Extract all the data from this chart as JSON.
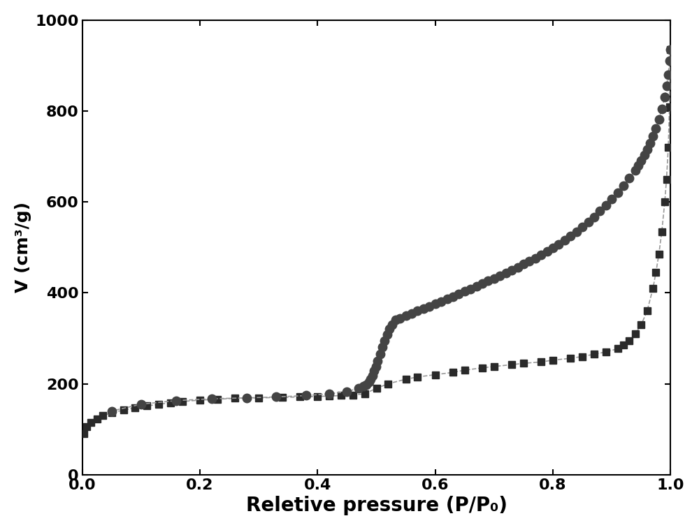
{
  "title": "",
  "xlabel": "Reletive pressure (P/P₀)",
  "ylabel": "V (cm³/g)",
  "xlim": [
    0.0,
    1.0
  ],
  "ylim": [
    0,
    1000
  ],
  "yticks": [
    0,
    200,
    400,
    600,
    800,
    1000
  ],
  "xticks": [
    0.0,
    0.2,
    0.4,
    0.6,
    0.8,
    1.0
  ],
  "background_color": "#ffffff",
  "xlabel_fontsize": 20,
  "ylabel_fontsize": 18,
  "tick_fontsize": 16,
  "adsorption_x": [
    0.003,
    0.008,
    0.015,
    0.025,
    0.035,
    0.05,
    0.07,
    0.09,
    0.11,
    0.13,
    0.15,
    0.17,
    0.2,
    0.23,
    0.26,
    0.3,
    0.34,
    0.37,
    0.4,
    0.42,
    0.44,
    0.46,
    0.48,
    0.5,
    0.52,
    0.55,
    0.57,
    0.6,
    0.63,
    0.65,
    0.68,
    0.7,
    0.73,
    0.75,
    0.78,
    0.8,
    0.83,
    0.85,
    0.87,
    0.89,
    0.91,
    0.92,
    0.93,
    0.94,
    0.95,
    0.96,
    0.97,
    0.975,
    0.98,
    0.985,
    0.99,
    0.993,
    0.996,
    0.998,
    0.999
  ],
  "adsorption_y": [
    90,
    105,
    115,
    123,
    130,
    136,
    142,
    147,
    151,
    155,
    158,
    161,
    164,
    166,
    168,
    169,
    170,
    171,
    172,
    173,
    174,
    175,
    178,
    190,
    200,
    210,
    215,
    220,
    225,
    230,
    235,
    238,
    242,
    245,
    248,
    252,
    256,
    260,
    265,
    270,
    277,
    285,
    295,
    310,
    330,
    360,
    410,
    445,
    485,
    535,
    600,
    650,
    720,
    810,
    935
  ],
  "desorption_x": [
    0.999,
    0.998,
    0.996,
    0.993,
    0.99,
    0.985,
    0.98,
    0.975,
    0.97,
    0.965,
    0.96,
    0.955,
    0.95,
    0.945,
    0.94,
    0.93,
    0.92,
    0.91,
    0.9,
    0.89,
    0.88,
    0.87,
    0.86,
    0.85,
    0.84,
    0.83,
    0.82,
    0.81,
    0.8,
    0.79,
    0.78,
    0.77,
    0.76,
    0.75,
    0.74,
    0.73,
    0.72,
    0.71,
    0.7,
    0.69,
    0.68,
    0.67,
    0.66,
    0.65,
    0.64,
    0.63,
    0.62,
    0.61,
    0.6,
    0.59,
    0.58,
    0.57,
    0.56,
    0.55,
    0.54,
    0.533,
    0.527,
    0.522,
    0.518,
    0.514,
    0.51,
    0.506,
    0.502,
    0.499,
    0.496,
    0.493,
    0.49,
    0.487,
    0.483,
    0.478,
    0.47,
    0.45,
    0.42,
    0.38,
    0.33,
    0.28,
    0.22,
    0.16,
    0.1,
    0.05
  ],
  "desorption_y": [
    935,
    910,
    880,
    855,
    830,
    805,
    782,
    762,
    745,
    730,
    716,
    703,
    691,
    680,
    670,
    652,
    636,
    620,
    606,
    592,
    580,
    567,
    556,
    545,
    535,
    525,
    516,
    507,
    499,
    491,
    483,
    476,
    469,
    463,
    456,
    450,
    444,
    438,
    432,
    426,
    420,
    414,
    409,
    403,
    397,
    392,
    386,
    381,
    376,
    370,
    365,
    360,
    355,
    350,
    344,
    340,
    330,
    320,
    308,
    295,
    280,
    265,
    250,
    238,
    228,
    218,
    210,
    204,
    198,
    194,
    190,
    183,
    178,
    174,
    171,
    169,
    167,
    163,
    155,
    140
  ],
  "adsorption_color": "#2a2a2a",
  "desorption_color": "#444444",
  "line_color": "#999999",
  "line_style": "--",
  "line_width": 1.2,
  "adsorption_marker": "s",
  "desorption_marker": "o",
  "marker_size_ads": 7,
  "marker_size_des": 9
}
